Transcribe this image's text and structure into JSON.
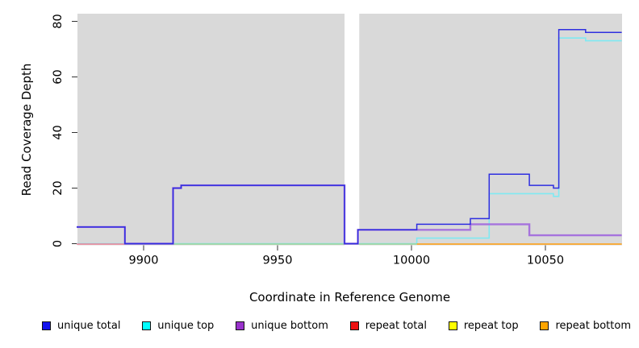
{
  "axes": {
    "x_label": "Coordinate in Reference Genome",
    "y_label": "Read Coverage Depth",
    "x_ticks": [
      9900,
      9950,
      10000,
      10050
    ],
    "y_ticks": [
      0,
      20,
      40,
      60,
      80
    ]
  },
  "chart_data": {
    "type": "line",
    "step": true,
    "title": "",
    "xlabel": "Coordinate in Reference Genome",
    "ylabel": "Read Coverage Depth",
    "x_range": [
      9875,
      10078.5
    ],
    "ylim": [
      0,
      83
    ],
    "grid": false,
    "plot_bg_color": "#d9d9d9",
    "coverage_gap": {
      "start": 9975,
      "end": 9980.5,
      "color": "#ffffff"
    },
    "series": [
      {
        "name": "unique total",
        "legend_color": "#1111ee",
        "line_color": "#2e2ee0",
        "line_width": 1.5,
        "points": [
          [
            9875,
            6
          ],
          [
            9893,
            0
          ],
          [
            9911,
            20
          ],
          [
            9914,
            21
          ],
          [
            9975,
            0
          ],
          [
            9980,
            5
          ],
          [
            10002,
            7
          ],
          [
            10022,
            9
          ],
          [
            10029,
            25
          ],
          [
            10044,
            21
          ],
          [
            10053,
            20
          ],
          [
            10055,
            77
          ],
          [
            10065,
            76
          ]
        ]
      },
      {
        "name": "unique top",
        "legend_color": "#00ffff",
        "line_color": "#7fe9f2",
        "line_width": 1.6,
        "points": [
          [
            9875,
            0
          ],
          [
            10002,
            2
          ],
          [
            10029,
            18
          ],
          [
            10053,
            17
          ],
          [
            10055,
            74
          ],
          [
            10065,
            73
          ]
        ]
      },
      {
        "name": "unique bottom",
        "legend_color": "#9932cc",
        "line_color": "#a673dd",
        "line_width": 2.4,
        "points": [
          [
            9875,
            6
          ],
          [
            9893,
            0
          ],
          [
            9911,
            20
          ],
          [
            9914,
            21
          ],
          [
            9975,
            0
          ],
          [
            9980,
            5
          ],
          [
            10022,
            7
          ],
          [
            10044,
            3
          ]
        ]
      },
      {
        "name": "repeat total",
        "legend_color": "#ee1111",
        "line_color": "#ef8094",
        "line_width": 1.4,
        "points": [
          [
            9875,
            0
          ]
        ]
      },
      {
        "name": "repeat top",
        "legend_color": "#ffff00",
        "line_color": "#98d59a",
        "line_width": 1.4,
        "points": [
          [
            9875,
            0
          ]
        ]
      },
      {
        "name": "repeat bottom",
        "legend_color": "#ffa500",
        "line_color": "#ff9d0a",
        "line_width": 1.4,
        "points": [
          [
            9875,
            0
          ]
        ]
      }
    ],
    "baseline_segments": [
      {
        "from": 9875,
        "to": 9893,
        "value": 0,
        "color": "#ef8094"
      },
      {
        "from": 9893,
        "to": 10002,
        "value": 0,
        "color": "#98d59a"
      },
      {
        "from": 10002,
        "to": 10078.5,
        "value": 0,
        "color": "#ff9d0a"
      }
    ],
    "legend_position": "bottom"
  },
  "legend": {
    "items": [
      {
        "label": "unique total",
        "color": "#1111ee"
      },
      {
        "label": "unique top",
        "color": "#00ffff"
      },
      {
        "label": "unique bottom",
        "color": "#9932cc"
      },
      {
        "label": "repeat total",
        "color": "#ee1111"
      },
      {
        "label": "repeat top",
        "color": "#ffff00"
      },
      {
        "label": "repeat bottom",
        "color": "#ffa500"
      }
    ]
  }
}
